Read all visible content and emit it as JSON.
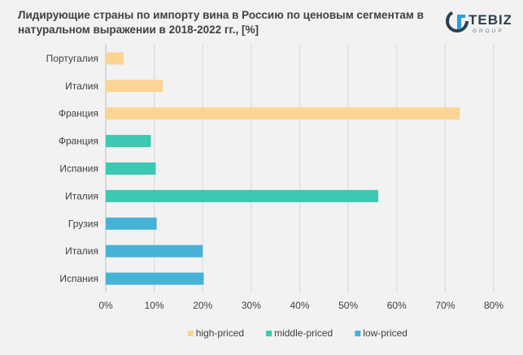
{
  "title": "Лидирующие страны по импорту вина в Россию по ценовым сегментам в натуральном выражении в 2018-2022 гг., [%]",
  "logo": {
    "name": "TEBIZ",
    "sub": "GROUP"
  },
  "chart_data": {
    "type": "bar",
    "orientation": "horizontal",
    "title": "Лидирующие страны по импорту вина в Россию по ценовым сегментам в натуральном выражении в 2018-2022 гг., [%]",
    "xlim": [
      0,
      80
    ],
    "xticks": [
      "0%",
      "10%",
      "20%",
      "30%",
      "40%",
      "50%",
      "60%",
      "70%",
      "80%"
    ],
    "xtick_values": [
      0,
      10,
      20,
      30,
      40,
      50,
      60,
      70,
      80
    ],
    "grid": "vertical",
    "legend_position": "bottom",
    "series": [
      {
        "name": "high-priced",
        "color": "#fcd494",
        "categories": [
          "Португалия",
          "Италия",
          "Франция"
        ],
        "values": [
          3.7,
          11.8,
          73.0
        ]
      },
      {
        "name": "middle-priced",
        "color": "#3cc9b1",
        "categories": [
          "Франция",
          "Испания",
          "Италия"
        ],
        "values": [
          9.3,
          10.3,
          56.2
        ]
      },
      {
        "name": "low-priced",
        "color": "#45b2d8",
        "categories": [
          "Грузия",
          "Италия",
          "Испания"
        ],
        "values": [
          10.5,
          20.0,
          20.2
        ]
      }
    ]
  }
}
